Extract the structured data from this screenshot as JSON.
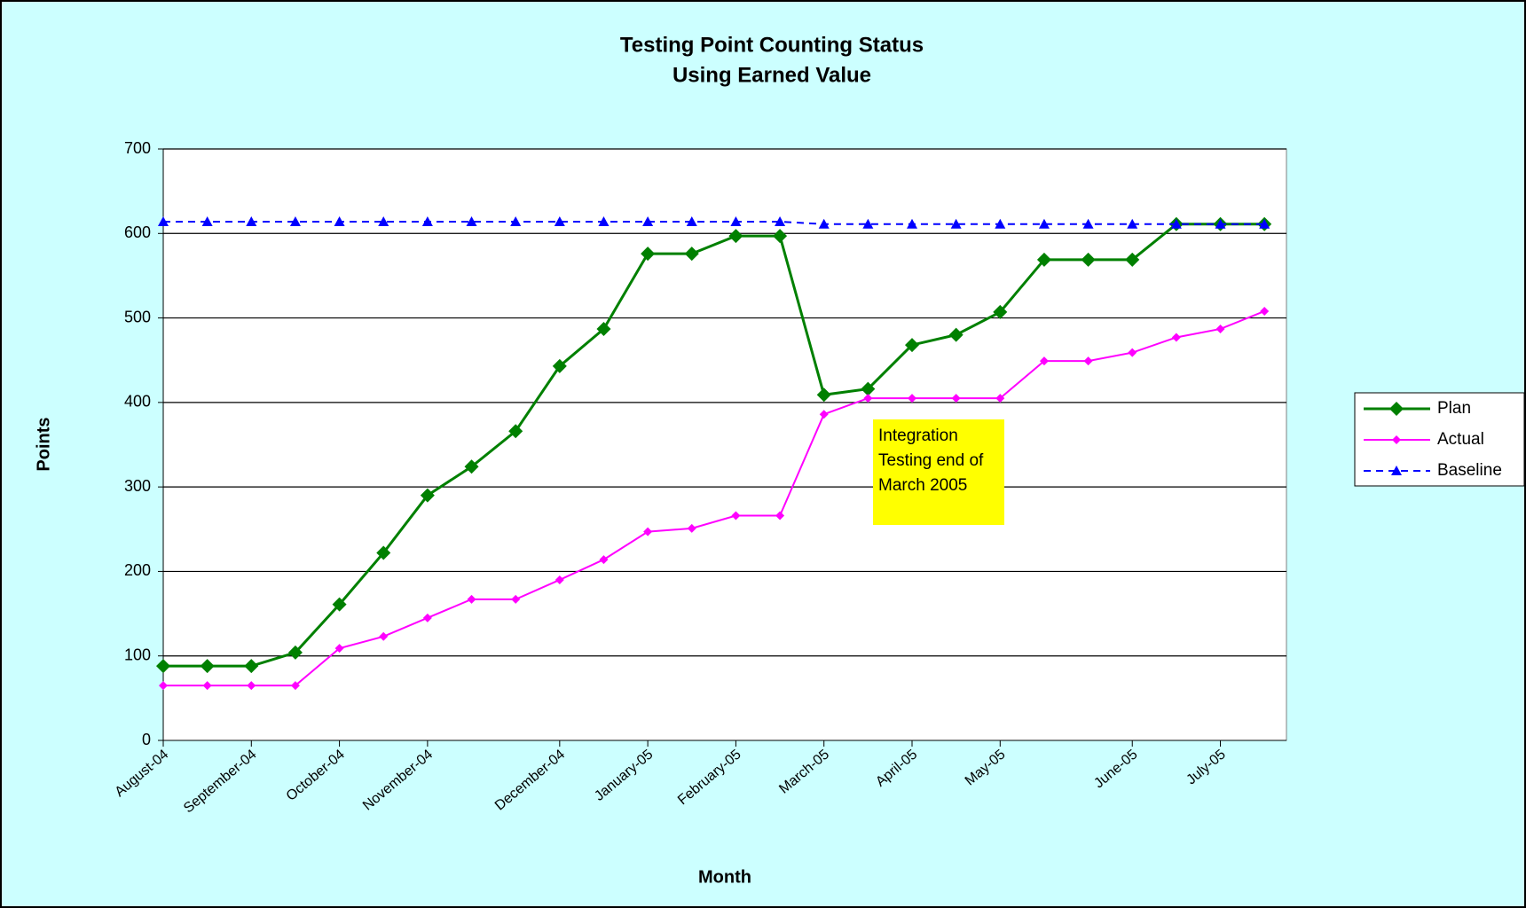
{
  "chart_data": {
    "type": "line",
    "title": "Testing Point Counting Status",
    "subtitle": "Using Earned Value",
    "x_label": "Month",
    "y_label": "Points",
    "annotation": "Integration Testing end of March 2005",
    "categories": [
      "August-04",
      null,
      "September-04",
      null,
      "October-04",
      null,
      "November-04",
      null,
      null,
      "December-04",
      null,
      "January-05",
      null,
      "February-05",
      null,
      "March-05",
      null,
      "April-05",
      null,
      "May-05",
      null,
      null,
      "June-05",
      null,
      "July-05",
      null
    ],
    "series": [
      {
        "name": "Plan",
        "color": "#008000",
        "marker": "diamond",
        "values": [
          88,
          88,
          88,
          104,
          161,
          222,
          290,
          324,
          366,
          443,
          487,
          576,
          576,
          597,
          597,
          409,
          416,
          468,
          480,
          507,
          569,
          569,
          569,
          611,
          611,
          611
        ]
      },
      {
        "name": "Actual",
        "color": "#ff00ff",
        "marker": "diamond-small",
        "values": [
          65,
          65,
          65,
          65,
          109,
          123,
          145,
          167,
          167,
          190,
          214,
          247,
          251,
          266,
          266,
          386,
          405,
          405,
          405,
          405,
          449,
          449,
          459,
          477,
          487,
          508
        ]
      },
      {
        "name": "Baseline",
        "color": "#0000ff",
        "marker": "triangle",
        "dashed": true,
        "values": [
          614,
          614,
          614,
          614,
          614,
          614,
          614,
          614,
          614,
          614,
          614,
          614,
          614,
          614,
          614,
          611,
          611,
          611,
          611,
          611,
          611,
          611,
          611,
          611,
          611,
          611
        ]
      }
    ],
    "ylim": [
      0,
      700
    ],
    "yticks": [
      0,
      100,
      200,
      300,
      400,
      500,
      600,
      700
    ],
    "grid": true,
    "legend": "right"
  }
}
